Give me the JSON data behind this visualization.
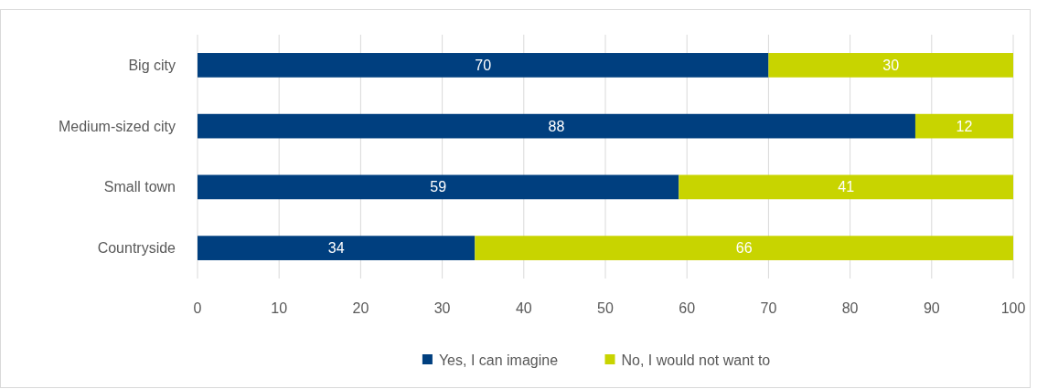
{
  "chart_data": {
    "type": "bar",
    "orientation": "horizontal",
    "stacked": true,
    "categories": [
      "Big city",
      "Medium-sized city",
      "Small town",
      "Countryside"
    ],
    "series": [
      {
        "name": "Yes, I can imagine",
        "color": "#003f7f",
        "values": [
          70,
          88,
          59,
          34
        ]
      },
      {
        "name": "No, I would not want to",
        "color": "#c8d400",
        "values": [
          30,
          12,
          41,
          66
        ]
      }
    ],
    "xlim": [
      0,
      100
    ],
    "xticks": [
      0,
      10,
      20,
      30,
      40,
      50,
      60,
      70,
      80,
      90,
      100
    ],
    "grid": "x",
    "legend": "bottom",
    "data_labels": true
  }
}
